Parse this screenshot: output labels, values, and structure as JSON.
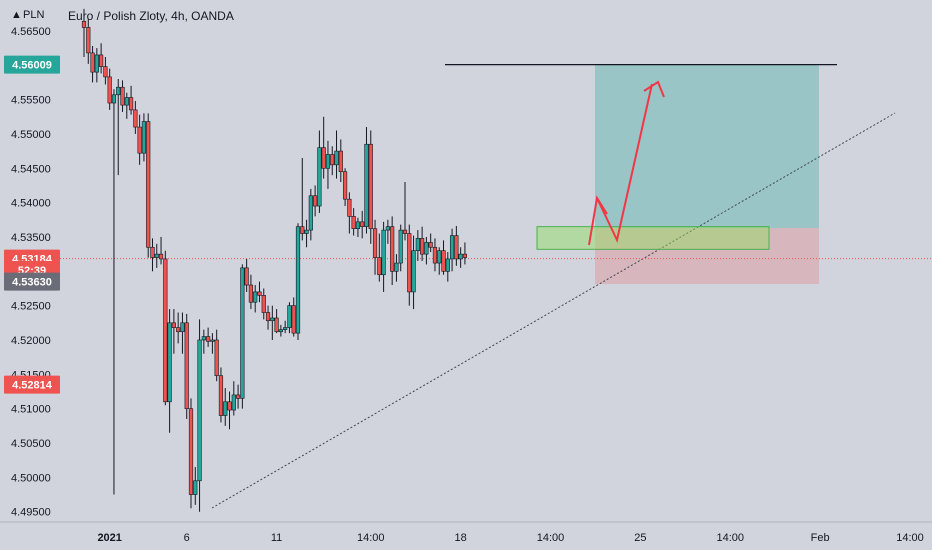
{
  "header": {
    "currency": "PLN",
    "symbol_title": "Euro / Polish Zloty, 4h, OANDA"
  },
  "colors": {
    "background": "#d1d4dc",
    "bull": "#26a69a",
    "bear": "#ef5350",
    "profit_zone": "#26a69a",
    "loss_zone": "#ef5350",
    "entry_box": "#8fe05a",
    "arrow": "#f23645",
    "resistance_line": "#131722",
    "trendline": "#434651",
    "current_price_line": "#ef5350"
  },
  "price_badges": [
    {
      "label": "4.56009",
      "price": 4.56009,
      "color": "#26a69a"
    },
    {
      "label": "4.53184",
      "price": 4.53184,
      "color": "#ef5350"
    },
    {
      "label": "52:39",
      "price": 4.5302,
      "color": "#ef5350"
    },
    {
      "label": "4.53630",
      "price": 4.5285,
      "color": "#6a6d78"
    },
    {
      "label": "4.52814",
      "price": 4.5135,
      "color": "#ef5350"
    }
  ],
  "chart_data": {
    "type": "candlestick",
    "title": "Euro / Polish Zloty, 4h, OANDA",
    "ylim": [
      4.4935,
      4.5695
    ],
    "y_ticks": [
      "4.56500",
      "4.56000",
      "4.55500",
      "4.55000",
      "4.54500",
      "4.54000",
      "4.53500",
      "4.53000",
      "4.52500",
      "4.52000",
      "4.51500",
      "4.51000",
      "4.50500",
      "4.50000",
      "4.49500"
    ],
    "x_ticks": [
      {
        "label": "2021",
        "index": 6
      },
      {
        "label": "6",
        "index": 24
      },
      {
        "label": "11",
        "index": 45
      },
      {
        "label": "14:00",
        "index": 67
      },
      {
        "label": "18",
        "index": 88
      },
      {
        "label": "14:00",
        "index": 109
      },
      {
        "label": "25",
        "index": 130
      },
      {
        "label": "14:00",
        "index": 151
      },
      {
        "label": "Feb",
        "index": 172
      },
      {
        "label": "14:00",
        "index": 193
      }
    ],
    "ohlc": [
      [
        4.5664,
        4.5682,
        4.5612,
        4.5655
      ],
      [
        4.5655,
        4.5668,
        4.5602,
        4.5618
      ],
      [
        4.5618,
        4.5628,
        4.5575,
        4.559
      ],
      [
        4.559,
        4.5625,
        4.5575,
        4.5615
      ],
      [
        4.5615,
        4.5632,
        4.5588,
        4.5598
      ],
      [
        4.5598,
        4.5612,
        4.5572,
        4.5583
      ],
      [
        4.5583,
        4.5595,
        4.5535,
        4.5545
      ],
      [
        4.5545,
        4.5565,
        4.4975,
        4.5557
      ],
      [
        4.5557,
        4.558,
        4.544,
        4.5568
      ],
      [
        4.5568,
        4.5578,
        4.5532,
        4.5542
      ],
      [
        4.5542,
        4.556,
        4.5522,
        4.5553
      ],
      [
        4.5553,
        4.557,
        4.5528,
        4.5535
      ],
      [
        4.5535,
        4.5548,
        4.55,
        4.551
      ],
      [
        4.551,
        4.5528,
        4.5455,
        4.5472
      ],
      [
        4.5472,
        4.553,
        4.546,
        4.5518
      ],
      [
        4.5518,
        4.553,
        4.532,
        4.5335
      ],
      [
        4.5335,
        4.5348,
        4.53,
        4.532
      ],
      [
        4.532,
        4.534,
        4.5305,
        4.5325
      ],
      [
        4.5325,
        4.535,
        4.531,
        4.5318
      ],
      [
        4.5318,
        4.533,
        4.5105,
        4.511
      ],
      [
        4.511,
        4.5245,
        4.5065,
        4.5225
      ],
      [
        4.5225,
        4.5245,
        4.518,
        4.5218
      ],
      [
        4.5218,
        4.524,
        4.5195,
        4.5212
      ],
      [
        4.5212,
        4.524,
        4.518,
        4.5225
      ],
      [
        4.5225,
        4.5238,
        4.5085,
        4.51
      ],
      [
        4.51,
        4.5115,
        4.4955,
        4.4975
      ],
      [
        4.4975,
        4.5015,
        4.496,
        4.4995
      ],
      [
        4.4995,
        4.523,
        4.495,
        4.52
      ],
      [
        4.52,
        4.5215,
        4.518,
        4.5205
      ],
      [
        4.5205,
        4.5218,
        4.519,
        4.5198
      ],
      [
        4.5198,
        4.521,
        4.518,
        4.52
      ],
      [
        4.52,
        4.5215,
        4.514,
        4.5148
      ],
      [
        4.5148,
        4.516,
        4.508,
        4.509
      ],
      [
        4.509,
        4.513,
        4.5075,
        4.511
      ],
      [
        4.511,
        4.5125,
        4.507,
        4.5098
      ],
      [
        4.5098,
        4.514,
        4.509,
        4.512
      ],
      [
        4.512,
        4.5135,
        4.51,
        4.5115
      ],
      [
        4.5115,
        4.531,
        4.51,
        4.5305
      ],
      [
        4.5305,
        4.5318,
        4.527,
        4.528
      ],
      [
        4.528,
        4.5295,
        4.5245,
        4.5255
      ],
      [
        4.5255,
        4.528,
        4.524,
        4.527
      ],
      [
        4.527,
        4.5285,
        4.5255,
        4.5265
      ],
      [
        4.5265,
        4.5275,
        4.523,
        4.524
      ],
      [
        4.524,
        4.525,
        4.5215,
        4.5228
      ],
      [
        4.5228,
        4.525,
        4.52,
        4.5232
      ],
      [
        4.5232,
        4.5245,
        4.521,
        4.5212
      ],
      [
        4.5212,
        4.5222,
        4.5205,
        4.5215
      ],
      [
        4.5215,
        4.5228,
        4.521,
        4.5218
      ],
      [
        4.5218,
        4.5255,
        4.521,
        4.525
      ],
      [
        4.525,
        4.5262,
        4.5205,
        4.521
      ],
      [
        4.521,
        4.537,
        4.52,
        4.5365
      ],
      [
        4.5365,
        4.5465,
        4.5345,
        4.5355
      ],
      [
        4.5355,
        4.5375,
        4.5335,
        4.536
      ],
      [
        4.536,
        4.542,
        4.5345,
        4.541
      ],
      [
        4.541,
        4.5425,
        4.538,
        4.5395
      ],
      [
        4.5395,
        4.5505,
        4.5385,
        4.548
      ],
      [
        4.548,
        4.5525,
        4.5435,
        4.545
      ],
      [
        4.545,
        4.549,
        4.542,
        4.547
      ],
      [
        4.547,
        4.5482,
        4.544,
        4.5455
      ],
      [
        4.5455,
        4.5505,
        4.5435,
        4.5475
      ],
      [
        4.5475,
        4.5492,
        4.543,
        4.5445
      ],
      [
        4.5445,
        4.545,
        4.5395,
        4.5405
      ],
      [
        4.5405,
        4.5415,
        4.5355,
        4.538
      ],
      [
        4.538,
        4.5392,
        4.5352,
        4.5362
      ],
      [
        4.5362,
        4.5378,
        4.535,
        4.5372
      ],
      [
        4.5372,
        4.5388,
        4.5348,
        4.5365
      ],
      [
        4.5365,
        4.551,
        4.5355,
        4.5485
      ],
      [
        4.5485,
        4.5505,
        4.534,
        4.5362
      ],
      [
        4.5362,
        4.5375,
        4.5295,
        4.532
      ],
      [
        4.532,
        4.5355,
        4.5285,
        4.5295
      ],
      [
        4.5295,
        4.5372,
        4.527,
        4.536
      ],
      [
        4.536,
        4.5375,
        4.534,
        4.5365
      ],
      [
        4.5365,
        4.538,
        4.528,
        4.53
      ],
      [
        4.53,
        4.5325,
        4.5285,
        4.5312
      ],
      [
        4.5312,
        4.5368,
        4.53,
        4.536
      ],
      [
        4.536,
        4.543,
        4.5345,
        4.5355
      ],
      [
        4.5355,
        4.5368,
        4.525,
        4.527
      ],
      [
        4.527,
        4.5352,
        4.5245,
        4.533
      ],
      [
        4.533,
        4.536,
        4.5315,
        4.5348
      ],
      [
        4.5348,
        4.5365,
        4.5315,
        4.5325
      ],
      [
        4.5325,
        4.535,
        4.531,
        4.5342
      ],
      [
        4.5342,
        4.5355,
        4.5328,
        4.5335
      ],
      [
        4.5335,
        4.5348,
        4.53,
        4.5312
      ],
      [
        4.5312,
        4.5335,
        4.5295,
        4.533
      ],
      [
        4.533,
        4.5345,
        4.5295,
        4.53
      ],
      [
        4.53,
        4.5328,
        4.5285,
        4.5318
      ],
      [
        4.5318,
        4.5362,
        4.53,
        4.5352
      ],
      [
        4.5352,
        4.5366,
        4.5308,
        4.5318
      ],
      [
        4.5318,
        4.5335,
        4.5305,
        4.5325
      ],
      [
        4.5325,
        4.5342,
        4.531,
        4.532
      ]
    ]
  },
  "annotations": {
    "resistance_price": 4.56009,
    "profit_zone": {
      "top": 4.5601,
      "bottom": 4.5363
    },
    "loss_zone": {
      "top": 4.5363,
      "bottom": 4.52814
    },
    "entry_box": {
      "top": 4.5365,
      "bottom": 4.5332
    },
    "current_price": 4.53184
  }
}
